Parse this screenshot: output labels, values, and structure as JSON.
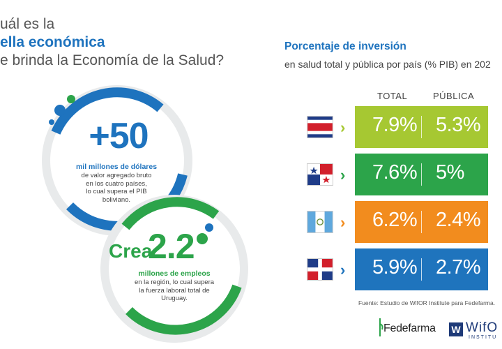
{
  "headline": {
    "line1": "uál es la",
    "line2": "ella económica",
    "line3": "e brinda la Economía de la Salud?"
  },
  "stat1": {
    "number": "+50",
    "bold": "mil millones de dólares",
    "text": [
      "de valor agregado bruto",
      "en los cuatro países,",
      "lo cual supera el PIB",
      "boliviano."
    ]
  },
  "stat2": {
    "prefix": "Crea",
    "number": "2.2",
    "bold": "millones de empleos",
    "text": [
      "en la región, lo cual supera",
      "la fuerza laboral total de",
      "Uruguay."
    ]
  },
  "panel": {
    "title": "Porcentaje de inversión",
    "subtitle": "en salud total y pública por país (% PIB) en 202",
    "col_total": "TOTAL",
    "col_public": "PÚBLICA",
    "rows": [
      {
        "country": "Costa Rica",
        "total": "7.9%",
        "public": "5.3%",
        "color": "#a6c832",
        "arrow_color": "#a6c832"
      },
      {
        "country": "Panamá",
        "total": "7.6%",
        "public": "5%",
        "color": "#2ca44a",
        "arrow_color": "#2ca44a"
      },
      {
        "country": "Guatemala",
        "total": "6.2%",
        "public": "2.4%",
        "color": "#f28c1e",
        "arrow_color": "#f28c1e"
      },
      {
        "country": "República Dominicana",
        "total": "5.9%",
        "public": "2.7%",
        "color": "#1f74bd",
        "arrow_color": "#1f74bd"
      }
    ],
    "source": "Fuente: Estudio de WifOR Institute para Fedefarma."
  },
  "logos": {
    "fedefarma": "Fedefarma",
    "wifor": "WifO",
    "wifor_sub": "INSTITU"
  },
  "colors": {
    "blue": "#1e73be",
    "green": "#2ca44a",
    "lime": "#a6c832",
    "orange": "#f28c1e"
  }
}
